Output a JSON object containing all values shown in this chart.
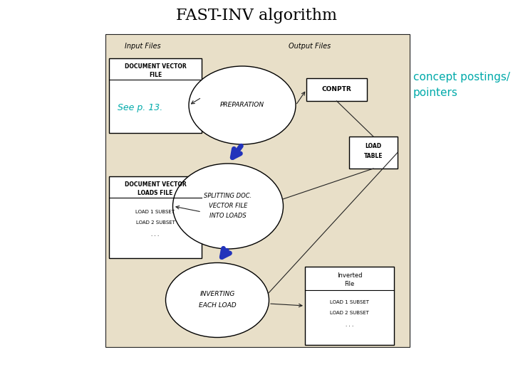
{
  "title": "FAST-INV algorithm",
  "title_fontsize": 16,
  "title_font": "serif",
  "white": "#ffffff",
  "black": "#000000",
  "diagram_bg": "#e8dfc8",
  "arrow_color": "#2233bb",
  "annotation_color": "#00aaaa",
  "line_color": "#222222",
  "label_input_files": "Input Files",
  "label_output_files": "Output Files",
  "box1_lines": [
    "DOCUMENT VECTOR",
    "FILE"
  ],
  "box1_sub": "See p. 13.",
  "box2_lines": [
    "DOCUMENT VECTOR",
    "LOADS FILE"
  ],
  "box2_sub": [
    "LOAD 1 SUBSET",
    "LOAD 2 SUBSET",
    ". . ."
  ],
  "oval1_text": "PREPARATION",
  "oval2_text": [
    "SPLITTING DOC.",
    "VECTOR FILE",
    "INTO LOADS"
  ],
  "oval3_text": [
    "INVERTING",
    "EACH LOAD"
  ],
  "box_conptr": "CONPTR",
  "box_load_table": [
    "LOAD",
    "TABLE"
  ],
  "box_inverted": [
    "Inverted",
    "File"
  ],
  "box_inverted_sub": [
    "LOAD 1 SUBSET",
    "LOAD 2 SUBSET",
    ". . ."
  ],
  "annotation": [
    "concept postings/",
    "pointers"
  ],
  "annotation_fontsize": 11
}
